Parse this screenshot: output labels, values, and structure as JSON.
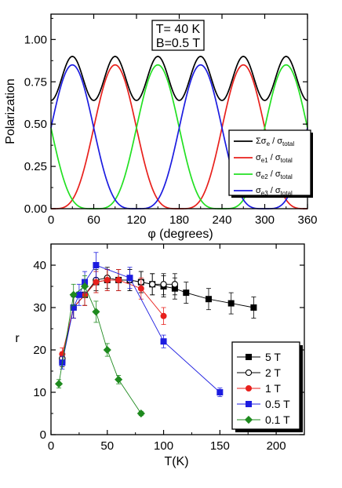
{
  "chart_data": [
    {
      "type": "line",
      "xlabel": "φ (degrees)",
      "ylabel": "Polarization",
      "xlim": [
        0,
        360
      ],
      "ylim": [
        0,
        1.15
      ],
      "xticks": [
        "0",
        "60",
        "120",
        "180",
        "240",
        "300",
        "360"
      ],
      "yticks": [
        "0.00",
        "0.25",
        "0.50",
        "0.75",
        "1.00"
      ],
      "annotation": [
        "T= 40 K",
        "B=0.5 T"
      ],
      "legend_position": "right",
      "curves": {
        "sum": {
          "peaks_deg": [
            30,
            90,
            150,
            210,
            270,
            330
          ],
          "max": 0.9,
          "min": 0.64
        },
        "e1": {
          "peaks_deg": [
            90,
            270
          ],
          "max": 0.85
        },
        "e2": {
          "peaks_deg": [
            150,
            330
          ],
          "max": 0.85
        },
        "e3": {
          "peaks_deg": [
            30,
            210
          ],
          "max": 0.85
        }
      },
      "series": [
        {
          "key": "sum",
          "label_main": "Σσ",
          "label_sub": "e",
          "label_tail": "/ σ",
          "label_tailsub": "total",
          "color": "#000000"
        },
        {
          "key": "e1",
          "label_main": "σ",
          "label_sub": "e1",
          "label_tail": "/ σ",
          "label_tailsub": "total",
          "color": "#e8201c"
        },
        {
          "key": "e2",
          "label_main": "σ",
          "label_sub": "e2",
          "label_tail": "/ σ",
          "label_tailsub": "total",
          "color": "#22e022"
        },
        {
          "key": "e3",
          "label_main": "σ",
          "label_sub": "e3",
          "label_tail": "/ σ",
          "label_tailsub": "total",
          "color": "#1c1ce0"
        }
      ]
    },
    {
      "type": "scatter",
      "xlabel": "T(K)",
      "ylabel": "r",
      "xlim": [
        0,
        225
      ],
      "ylim": [
        0,
        45
      ],
      "xticks": [
        "0",
        "50",
        "100",
        "150",
        "200"
      ],
      "yticks": [
        "0",
        "10",
        "20",
        "30",
        "40"
      ],
      "legend_position": "bottom-right",
      "series": [
        {
          "name": "5 T",
          "color": "#000000",
          "marker": "square-filled",
          "x": [
            10,
            20,
            30,
            40,
            50,
            60,
            70,
            80,
            90,
            100,
            110,
            120,
            140,
            160,
            180
          ],
          "y": [
            17.5,
            30,
            33,
            36,
            36.5,
            36.5,
            36.5,
            36,
            35.5,
            35,
            34.5,
            33.5,
            32,
            31,
            30
          ],
          "err": [
            1.5,
            2.5,
            2.5,
            2.5,
            2.5,
            2.5,
            2.5,
            2.5,
            2.5,
            2.5,
            2.5,
            2.5,
            2.5,
            2.5,
            2.5
          ]
        },
        {
          "name": "2 T",
          "color": "#000000",
          "marker": "circle-open",
          "x": [
            10,
            20,
            30,
            40,
            50,
            60,
            70,
            80,
            90,
            100,
            110
          ],
          "y": [
            18,
            30,
            33,
            36.5,
            37,
            36.5,
            36.5,
            36,
            35.5,
            35.5,
            35.5
          ],
          "err": [
            1.5,
            2.5,
            2.5,
            2.5,
            2.5,
            2.5,
            2.5,
            2.5,
            2.5,
            2.5,
            2.5
          ]
        },
        {
          "name": "1 T",
          "color": "#e8201c",
          "marker": "circle-filled",
          "x": [
            10,
            20,
            30,
            40,
            50,
            60,
            80,
            100
          ],
          "y": [
            19,
            30,
            33,
            36,
            36.5,
            36.5,
            34.5,
            28
          ],
          "err": [
            1.5,
            2.5,
            2.5,
            2.5,
            2.5,
            2.5,
            2.5,
            2
          ]
        },
        {
          "name": "0.5 T",
          "color": "#1c1ce0",
          "marker": "square-filled",
          "x": [
            10,
            20,
            25,
            30,
            40,
            70,
            100,
            150
          ],
          "y": [
            17,
            30,
            33,
            36,
            40,
            37,
            22,
            10
          ],
          "err": [
            1.5,
            2.5,
            2.5,
            2.5,
            3,
            2.5,
            1.5,
            1
          ]
        },
        {
          "name": "0.1 T",
          "color": "#1e8a1e",
          "marker": "diamond-filled",
          "x": [
            7,
            20,
            30,
            40,
            50,
            60,
            80
          ],
          "y": [
            12,
            33,
            35,
            29,
            20,
            13,
            5
          ],
          "err": [
            1,
            2.5,
            2.5,
            2.5,
            1.5,
            1,
            0.5
          ]
        }
      ]
    }
  ]
}
